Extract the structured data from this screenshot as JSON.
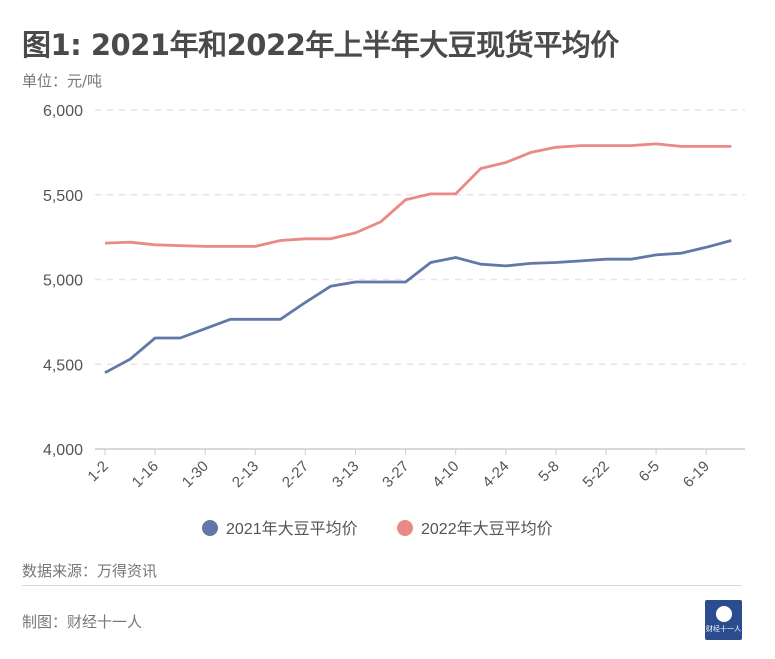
{
  "header": {
    "title": "图1: 2021年和2022年上半年大豆现货平均价",
    "unit": "单位：元/吨"
  },
  "footer": {
    "source": "数据来源：万得资讯",
    "maker": "制图：财经十一人",
    "logo_text": "财经十一人"
  },
  "colors": {
    "series_2021": "#6278a8",
    "series_2022": "#ea8a86",
    "grid": "#e5e5e5",
    "axis": "#cccccc",
    "text": "#555555"
  },
  "chart_data": {
    "type": "line",
    "title": "图1: 2021年和2022年上半年大豆现货平均价",
    "ylabel": "元/吨",
    "ylim": [
      4000,
      6000
    ],
    "yticks": [
      4000,
      4500,
      5000,
      5500,
      6000
    ],
    "ytick_labels": [
      "4,000",
      "4,500",
      "5,000",
      "5,500",
      "6,000"
    ],
    "xtick_labels": [
      "1-2",
      "1-16",
      "1-30",
      "2-13",
      "2-27",
      "3-13",
      "3-27",
      "4-10",
      "4-24",
      "5-8",
      "5-22",
      "6-5",
      "6-19"
    ],
    "x": [
      "1-2",
      "1-9",
      "1-16",
      "1-23",
      "1-30",
      "2-6",
      "2-13",
      "2-20",
      "2-27",
      "3-6",
      "3-13",
      "3-20",
      "3-27",
      "4-3",
      "4-10",
      "4-17",
      "4-24",
      "5-1",
      "5-8",
      "5-15",
      "5-22",
      "5-29",
      "6-5",
      "6-12",
      "6-19",
      "6-26"
    ],
    "series": [
      {
        "name": "2021年大豆平均价",
        "values": [
          4450,
          4530,
          4655,
          4655,
          4710,
          4765,
          4765,
          4765,
          4865,
          4960,
          4985,
          4985,
          4985,
          5100,
          5130,
          5090,
          5080,
          5095,
          5100,
          5110,
          5120,
          5120,
          5145,
          5155,
          5190,
          5230
        ]
      },
      {
        "name": "2022年大豆平均价",
        "values": [
          5215,
          5220,
          5205,
          5200,
          5195,
          5195,
          5195,
          5230,
          5240,
          5240,
          5275,
          5340,
          5470,
          5505,
          5505,
          5655,
          5690,
          5750,
          5780,
          5790,
          5790,
          5790,
          5800,
          5785,
          5785,
          5785
        ]
      }
    ],
    "legend_position": "bottom",
    "grid": true
  }
}
